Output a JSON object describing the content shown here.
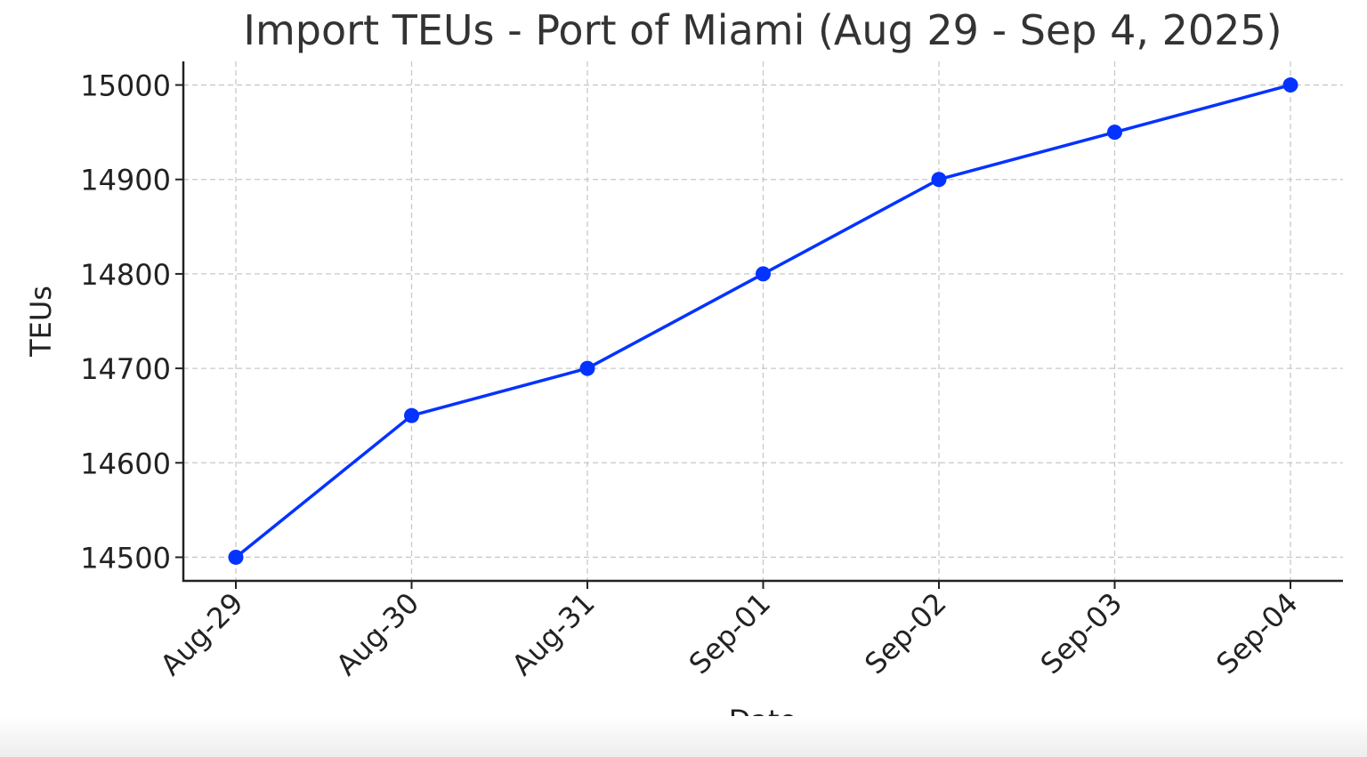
{
  "chart_data": {
    "type": "line",
    "title": "Import TEUs - Port of Miami (Aug 29 - Sep 4, 2025)",
    "xlabel": "Date",
    "ylabel": "TEUs",
    "categories": [
      "Aug-29",
      "Aug-30",
      "Aug-31",
      "Sep-01",
      "Sep-02",
      "Sep-03",
      "Sep-04"
    ],
    "series": [
      {
        "name": "",
        "values": [
          14500,
          14650,
          14700,
          14800,
          14900,
          14950,
          15000
        ],
        "color": "#0433ff"
      }
    ],
    "ylim": [
      14475,
      15025
    ],
    "yticks": [
      14500,
      14600,
      14700,
      14800,
      14900,
      15000
    ],
    "grid": true,
    "marker": "circle"
  }
}
